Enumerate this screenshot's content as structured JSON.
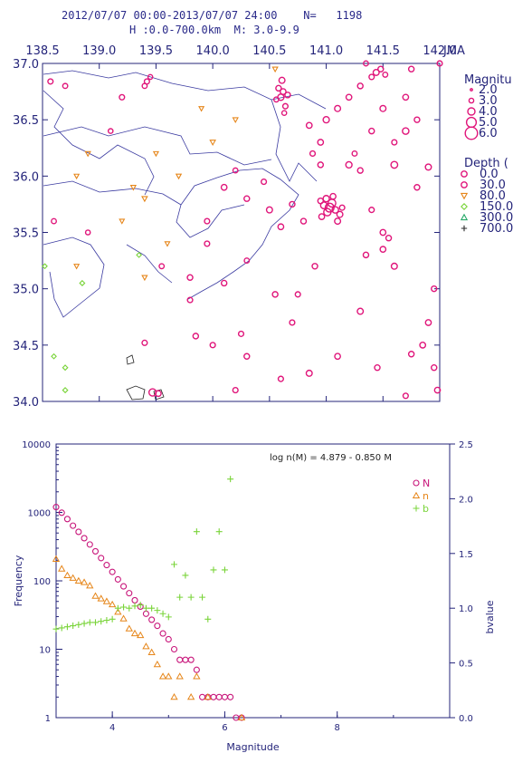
{
  "header": {
    "line1": "2012/07/07 00:00-2013/07/07 24:00    N=   1198",
    "line2": "H :0.0-700.0km  M: 3.0-9.9"
  },
  "colors": {
    "axis": "#24247a",
    "depth_0": "#e0157a",
    "depth_30": "#e0157a",
    "depth_80": "#e6861a",
    "depth_150": "#7ad43a",
    "depth_300": "#2aaa6a",
    "depth_700": "#2a2a2a",
    "N": "#c8157a",
    "n": "#e6861a",
    "b": "#7ad43a"
  },
  "chart_data": [
    {
      "type": "scatter",
      "title": "2012/07/07 00:00-2013/07/07 24:00 N= 1198",
      "agency": "JMA",
      "xlim": [
        138.5,
        142.0
      ],
      "ylim": [
        34.0,
        37.0
      ],
      "x_ticks": [
        "138.5",
        "139.0",
        "139.5",
        "140.0",
        "140.5",
        "141.0",
        "141.5",
        "142.0"
      ],
      "y_ticks": [
        "34.0",
        "34.5",
        "35.0",
        "35.5",
        "36.0",
        "36.5",
        "37.0"
      ],
      "magnitude_legend_title": "Magnitu",
      "magnitude_legend": [
        "2.0",
        "3.0",
        "4.0",
        "5.0",
        "6.0"
      ],
      "depth_legend_title": "Depth (",
      "depth_legend": [
        "0.0",
        "30.0",
        "80.0",
        "150.0",
        "300.0",
        "700.0"
      ],
      "events_total": 1198,
      "events": [
        [
          141.03,
          35.72,
          4.6,
          20
        ],
        [
          141.05,
          35.76,
          4.2,
          25
        ],
        [
          141.01,
          35.68,
          4.0,
          28
        ],
        [
          140.98,
          35.74,
          3.8,
          22
        ],
        [
          141.08,
          35.7,
          3.7,
          18
        ],
        [
          141.0,
          35.8,
          3.6,
          24
        ],
        [
          141.12,
          35.66,
          3.5,
          30
        ],
        [
          140.96,
          35.64,
          3.4,
          26
        ],
        [
          141.06,
          35.82,
          3.4,
          20
        ],
        [
          141.1,
          35.6,
          3.5,
          22
        ],
        [
          140.95,
          35.78,
          3.3,
          18
        ],
        [
          141.14,
          35.72,
          3.2,
          25
        ],
        [
          140.6,
          36.7,
          3.6,
          25
        ],
        [
          140.62,
          36.75,
          3.4,
          20
        ],
        [
          140.58,
          36.78,
          3.3,
          22
        ],
        [
          140.64,
          36.62,
          3.2,
          24
        ],
        [
          140.61,
          36.85,
          3.5,
          18
        ],
        [
          140.56,
          36.68,
          3.1,
          20
        ],
        [
          140.63,
          36.56,
          3.0,
          22
        ],
        [
          140.66,
          36.72,
          3.3,
          26
        ],
        [
          141.44,
          36.92,
          3.5,
          20
        ],
        [
          141.48,
          36.95,
          3.3,
          22
        ],
        [
          141.4,
          36.88,
          3.2,
          24
        ],
        [
          141.52,
          36.9,
          3.1,
          18
        ],
        [
          139.42,
          36.84,
          3.2,
          10
        ],
        [
          139.45,
          36.88,
          3.0,
          8
        ],
        [
          139.4,
          36.8,
          3.1,
          12
        ],
        [
          139.47,
          34.08,
          4.0,
          10
        ],
        [
          139.52,
          34.07,
          3.4,
          10
        ],
        [
          140.88,
          36.2,
          3.2,
          40
        ],
        [
          140.95,
          36.3,
          3.4,
          50
        ],
        [
          141.2,
          36.1,
          3.6,
          50
        ],
        [
          141.3,
          36.05,
          3.3,
          40
        ],
        [
          141.6,
          36.1,
          3.8,
          35
        ],
        [
          141.7,
          36.4,
          3.7,
          30
        ],
        [
          141.9,
          36.08,
          3.5,
          35
        ],
        [
          141.8,
          35.9,
          3.3,
          40
        ],
        [
          141.4,
          35.7,
          3.2,
          40
        ],
        [
          141.5,
          35.5,
          3.4,
          40
        ],
        [
          141.35,
          35.3,
          3.3,
          35
        ],
        [
          141.6,
          35.2,
          3.5,
          40
        ],
        [
          141.85,
          34.5,
          3.4,
          40
        ],
        [
          141.95,
          34.3,
          3.3,
          35
        ],
        [
          141.7,
          34.05,
          3.2,
          30
        ],
        [
          141.75,
          34.42,
          3.3,
          30
        ],
        [
          141.98,
          34.1,
          3.4,
          35
        ],
        [
          140.2,
          34.1,
          3.2,
          20
        ],
        [
          140.3,
          34.4,
          3.3,
          20
        ],
        [
          140.6,
          34.2,
          3.2,
          15
        ],
        [
          139.85,
          34.58,
          3.3,
          15
        ],
        [
          139.4,
          34.52,
          3.2,
          10
        ],
        [
          139.55,
          35.2,
          3.1,
          15
        ],
        [
          139.8,
          35.1,
          3.3,
          20
        ],
        [
          138.57,
          36.84,
          3.2,
          10
        ],
        [
          138.7,
          36.8,
          3.1,
          10
        ],
        [
          139.2,
          36.7,
          3.2,
          10
        ],
        [
          139.1,
          36.4,
          3.0,
          12
        ],
        [
          138.6,
          35.6,
          3.1,
          20
        ],
        [
          138.9,
          35.5,
          3.0,
          15
        ],
        [
          140.9,
          35.2,
          3.3,
          25
        ],
        [
          140.7,
          34.7,
          3.2,
          15
        ],
        [
          139.95,
          35.6,
          3.2,
          60
        ],
        [
          140.1,
          35.9,
          3.4,
          70
        ],
        [
          140.3,
          35.8,
          3.3,
          65
        ],
        [
          140.5,
          35.7,
          3.5,
          60
        ],
        [
          140.7,
          35.75,
          3.3,
          60
        ],
        [
          140.45,
          35.95,
          3.2,
          70
        ],
        [
          140.2,
          36.05,
          3.1,
          65
        ],
        [
          140.6,
          35.55,
          3.4,
          70
        ],
        [
          140.8,
          35.6,
          3.3,
          55
        ],
        [
          139.95,
          35.4,
          3.2,
          60
        ],
        [
          140.3,
          35.25,
          3.1,
          55
        ],
        [
          140.1,
          35.05,
          3.3,
          50
        ],
        [
          140.85,
          36.45,
          3.4,
          55
        ],
        [
          141.0,
          36.5,
          3.6,
          60
        ],
        [
          141.1,
          36.6,
          3.5,
          55
        ],
        [
          141.2,
          36.7,
          3.4,
          60
        ],
        [
          141.3,
          36.8,
          3.3,
          55
        ],
        [
          141.5,
          36.6,
          3.5,
          60
        ],
        [
          141.4,
          36.4,
          3.3,
          55
        ],
        [
          141.6,
          36.3,
          3.2,
          60
        ],
        [
          141.7,
          36.7,
          3.4,
          55
        ],
        [
          141.8,
          36.5,
          3.3,
          60
        ],
        [
          141.25,
          36.2,
          3.1,
          55
        ],
        [
          140.95,
          36.1,
          3.3,
          60
        ],
        [
          141.5,
          35.35,
          3.4,
          55
        ],
        [
          141.55,
          35.45,
          3.3,
          60
        ],
        [
          140.75,
          34.95,
          3.2,
          55
        ],
        [
          141.3,
          34.8,
          3.5,
          50
        ],
        [
          140.55,
          34.95,
          3.3,
          45
        ],
        [
          140.25,
          34.6,
          3.2,
          45
        ],
        [
          141.1,
          34.4,
          3.4,
          50
        ],
        [
          140.85,
          34.25,
          3.5,
          45
        ],
        [
          141.45,
          34.3,
          3.3,
          50
        ],
        [
          139.8,
          34.9,
          3.2,
          55
        ],
        [
          140.0,
          34.5,
          3.2,
          50
        ],
        [
          141.95,
          35.0,
          3.3,
          55
        ],
        [
          141.9,
          34.7,
          3.4,
          60
        ],
        [
          141.35,
          37.0,
          3.1,
          50
        ],
        [
          141.75,
          36.95,
          3.3,
          50
        ],
        [
          142.0,
          37.0,
          3.2,
          55
        ],
        [
          139.5,
          36.2,
          3.0,
          100
        ],
        [
          139.7,
          36.0,
          3.1,
          110
        ],
        [
          140.0,
          36.3,
          3.2,
          100
        ],
        [
          139.9,
          36.6,
          3.0,
          120
        ],
        [
          139.3,
          35.9,
          3.1,
          100
        ],
        [
          138.8,
          35.2,
          3.0,
          120
        ],
        [
          139.4,
          35.8,
          3.2,
          110
        ],
        [
          140.2,
          36.5,
          3.1,
          100
        ],
        [
          139.2,
          35.6,
          3.0,
          110
        ],
        [
          140.55,
          36.95,
          3.1,
          100
        ],
        [
          139.6,
          35.4,
          3.0,
          120
        ],
        [
          138.9,
          36.2,
          3.1,
          100
        ],
        [
          138.8,
          36.0,
          3.0,
          110
        ],
        [
          139.4,
          35.1,
          3.1,
          100
        ],
        [
          138.52,
          35.2,
          3.0,
          200
        ],
        [
          138.85,
          35.05,
          3.1,
          250
        ],
        [
          139.35,
          35.3,
          3.0,
          220
        ],
        [
          138.7,
          34.1,
          3.1,
          230
        ],
        [
          138.6,
          34.4,
          3.0,
          210
        ],
        [
          138.7,
          34.3,
          3.1,
          220
        ]
      ]
    },
    {
      "type": "scatter",
      "title": "log n(M) = 4.879 - 0.850 M",
      "xlabel": "Magnitude",
      "ylabel": "Frequency",
      "y2label": "bvalue",
      "xlim": [
        3.0,
        10.0
      ],
      "ylim_log": [
        1,
        10000
      ],
      "y2lim": [
        0.0,
        2.5
      ],
      "x_ticks": [
        "4",
        "6",
        "8"
      ],
      "y_ticks": [
        "1",
        "10",
        "100",
        "1000",
        "10000"
      ],
      "y2_ticks": [
        "0.0",
        "0.5",
        "1.0",
        "1.5",
        "2.0",
        "2.5"
      ],
      "series": [
        {
          "name": "N",
          "marker": "circle",
          "x": [
            3.0,
            3.1,
            3.2,
            3.3,
            3.4,
            3.5,
            3.6,
            3.7,
            3.8,
            3.9,
            4.0,
            4.1,
            4.2,
            4.3,
            4.4,
            4.5,
            4.6,
            4.7,
            4.8,
            4.9,
            5.0,
            5.1,
            5.2,
            5.3,
            5.4,
            5.5,
            5.6,
            5.7,
            5.8,
            5.9,
            6.0,
            6.1,
            6.2,
            6.3
          ],
          "y": [
            1198,
            990,
            800,
            640,
            520,
            420,
            340,
            270,
            215,
            170,
            135,
            105,
            83,
            66,
            52,
            42,
            33,
            27,
            22,
            17,
            14,
            10,
            7,
            7,
            7,
            5,
            2,
            2,
            2,
            2,
            2,
            2,
            1,
            1
          ]
        },
        {
          "name": "n",
          "marker": "triangle",
          "x": [
            3.0,
            3.1,
            3.2,
            3.3,
            3.4,
            3.5,
            3.6,
            3.7,
            3.8,
            3.9,
            4.0,
            4.1,
            4.2,
            4.3,
            4.4,
            4.5,
            4.6,
            4.7,
            4.8,
            4.9,
            5.0,
            5.1,
            5.2,
            5.4,
            5.5,
            5.7,
            6.3
          ],
          "y": [
            208,
            150,
            120,
            110,
            100,
            95,
            85,
            60,
            55,
            50,
            45,
            35,
            28,
            20,
            17,
            16,
            11,
            9,
            6,
            4,
            4,
            2,
            4,
            2,
            4,
            2,
            1
          ]
        },
        {
          "name": "b",
          "marker": "plus",
          "x": [
            3.0,
            3.1,
            3.2,
            3.3,
            3.4,
            3.5,
            3.6,
            3.7,
            3.8,
            3.9,
            4.0,
            4.1,
            4.2,
            4.3,
            4.4,
            4.5,
            4.6,
            4.7,
            4.8,
            4.9,
            5.0,
            5.1,
            5.2,
            5.3,
            5.4,
            5.5,
            5.6,
            5.7,
            5.8,
            5.9,
            6.0,
            6.1
          ],
          "y": [
            0.81,
            0.82,
            0.83,
            0.84,
            0.85,
            0.86,
            0.87,
            0.87,
            0.88,
            0.89,
            0.9,
            1.0,
            1.01,
            1.0,
            1.02,
            1.03,
            1.0,
            1.0,
            0.98,
            0.95,
            0.92,
            1.4,
            1.1,
            1.3,
            1.1,
            1.7,
            1.1,
            0.9,
            1.35,
            1.7,
            1.35,
            2.18
          ]
        }
      ]
    }
  ]
}
